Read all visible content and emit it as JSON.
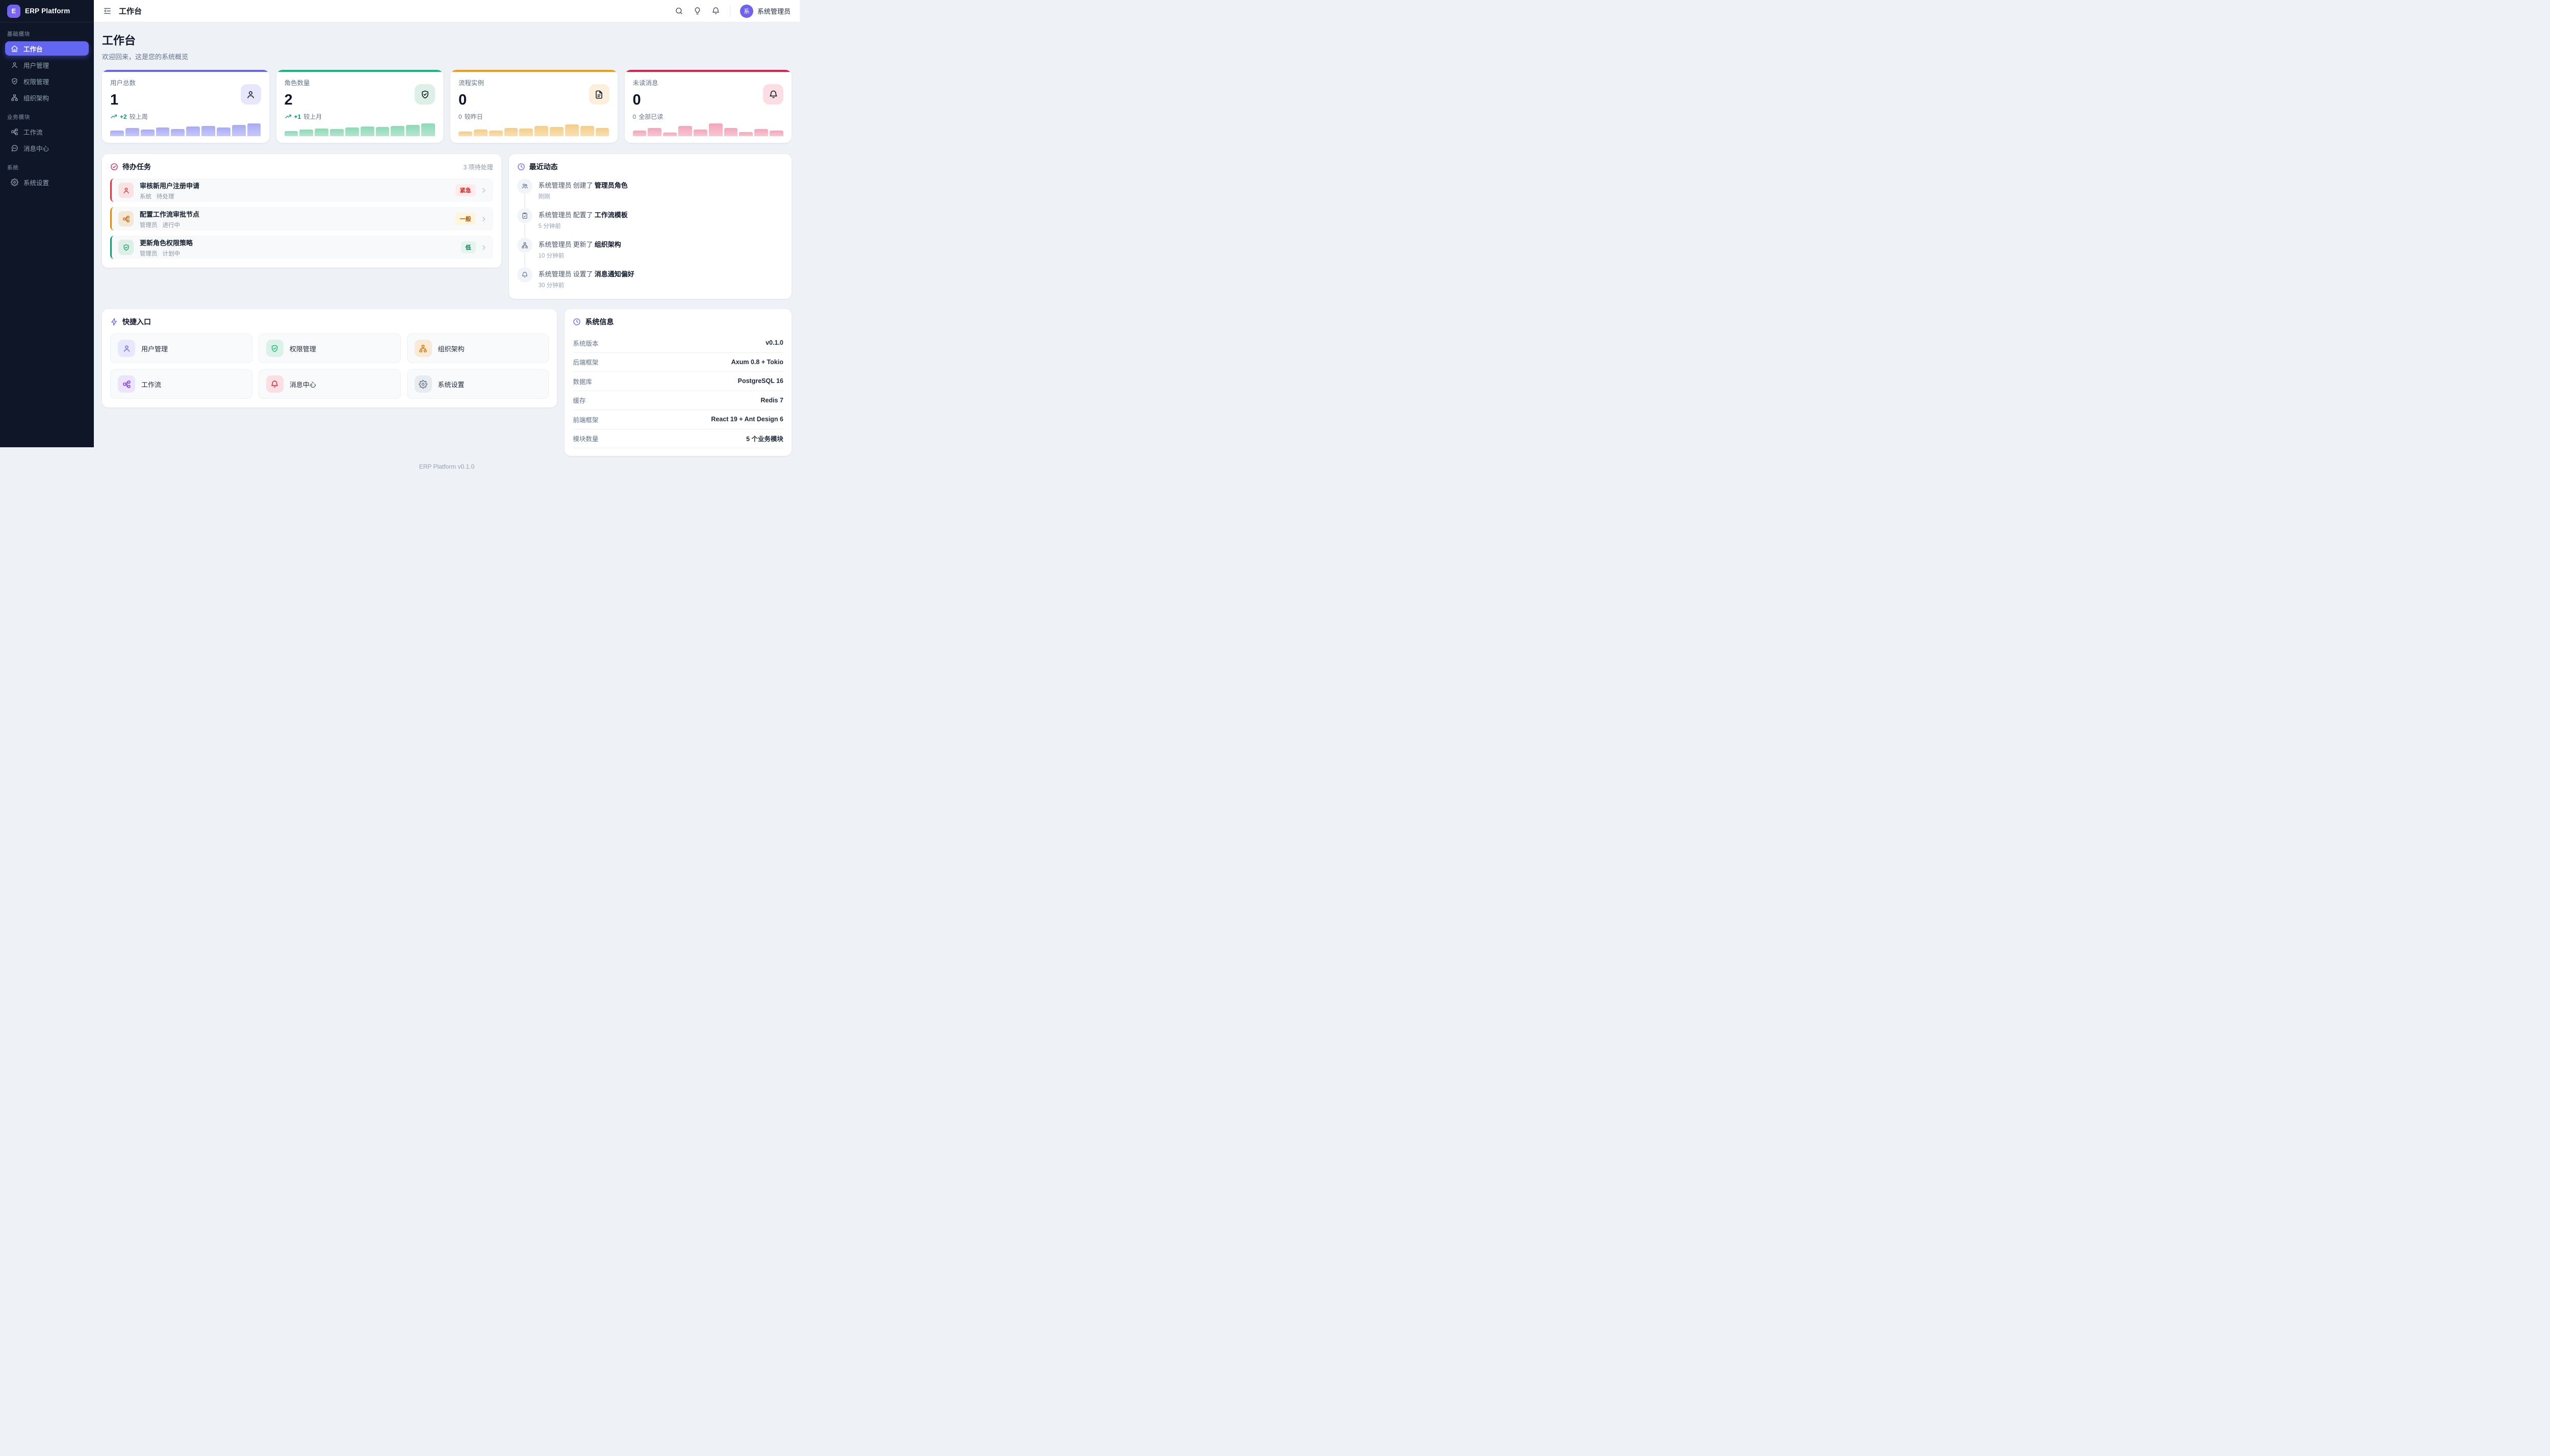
{
  "colors": {
    "primary": "#6366f1",
    "green": "#10b981",
    "orange": "#f59e0b",
    "red": "#e11d48",
    "trend_up": "#059669"
  },
  "sidebar": {
    "logo_letter": "E",
    "brand": "ERP Platform",
    "sections": [
      {
        "label": "基础模块",
        "items": [
          {
            "label": "工作台",
            "icon": "home-icon",
            "active": true
          },
          {
            "label": "用户管理",
            "icon": "user-icon"
          },
          {
            "label": "权限管理",
            "icon": "shield-check-icon"
          },
          {
            "label": "组织架构",
            "icon": "org-icon"
          }
        ]
      },
      {
        "label": "业务模块",
        "items": [
          {
            "label": "工作流",
            "icon": "workflow-icon"
          },
          {
            "label": "消息中心",
            "icon": "message-icon"
          }
        ]
      },
      {
        "label": "系统",
        "items": [
          {
            "label": "系统设置",
            "icon": "gear-icon"
          }
        ]
      }
    ]
  },
  "topbar": {
    "title": "工作台",
    "icons": [
      "menu-fold-icon",
      "search-icon",
      "lightbulb-icon",
      "bell-icon"
    ],
    "user_initial": "系",
    "user_name": "系统管理员"
  },
  "page": {
    "title": "工作台",
    "subtitle": "欢迎回来，这是您的系统概览"
  },
  "stat_cards": [
    {
      "label": "用户总数",
      "value": "1",
      "trend_value": "+2",
      "trend_label": "较上周",
      "trend_type": "up",
      "accent": "#6366f1",
      "icon": "user-icon",
      "icon_bg": "#e7e6fb",
      "bar_color": "#a9abf4",
      "bar_color_light": "#c6c8fa",
      "bars": [
        38,
        52,
        42,
        56,
        46,
        62,
        66,
        56,
        74,
        82
      ]
    },
    {
      "label": "角色数量",
      "value": "2",
      "trend_value": "+1",
      "trend_label": "较上月",
      "trend_type": "up",
      "accent": "#10b981",
      "icon": "shield-check-icon",
      "icon_bg": "#ddf0e7",
      "bar_color": "#8ed9b6",
      "bar_color_light": "#b4e6cf",
      "bars": [
        32,
        42,
        50,
        47,
        57,
        65,
        61,
        67,
        73,
        84
      ]
    },
    {
      "label": "流程实例",
      "value": "0",
      "trend_value": "0",
      "trend_label": "较昨日",
      "trend_type": "flat",
      "accent": "#f59e0b",
      "icon": "file-icon",
      "icon_bg": "#faf0dc",
      "bar_color": "#f4cd8a",
      "bar_color_light": "#f9e0b0",
      "bars": [
        30,
        45,
        37,
        54,
        49,
        68,
        60,
        76,
        66,
        55
      ]
    },
    {
      "label": "未读消息",
      "value": "0",
      "trend_value": "0",
      "trend_label": "全部已读",
      "trend_type": "flat",
      "accent": "#e11d48",
      "icon": "bell-icon",
      "icon_bg": "#fbdde4",
      "bar_color": "#f3a6ba",
      "bar_color_light": "#f8c6d2",
      "bars": [
        36,
        54,
        23,
        66,
        43,
        83,
        54,
        28,
        47,
        37
      ]
    }
  ],
  "todo": {
    "title": "待办任务",
    "count_text": "3 项待处理",
    "items": [
      {
        "title": "审核新用户注册申请",
        "source": "系统",
        "status": "待处理",
        "priority": "紧急",
        "accent": "#e5343f",
        "icon": "user-icon",
        "icon_bg": "#fbe2e2",
        "icon_color": "#dc2626",
        "pill_bg": "#fdeceb",
        "pill_color": "#dc2626"
      },
      {
        "title": "配置工作流审批节点",
        "source": "管理员",
        "status": "进行中",
        "priority": "一般",
        "accent": "#e78a00",
        "icon": "workflow-icon",
        "icon_bg": "#f5e7d5",
        "icon_color": "#c2610c",
        "pill_bg": "#fdf5dc",
        "pill_color": "#b45309"
      },
      {
        "title": "更新角色权限策略",
        "source": "管理员",
        "status": "计划中",
        "priority": "低",
        "accent": "#10a06d",
        "icon": "shield-check-icon",
        "icon_bg": "#ddefe6",
        "icon_color": "#0f9d6e",
        "pill_bg": "#e5f5ed",
        "pill_color": "#047857"
      }
    ]
  },
  "activity": {
    "title": "最近动态",
    "items": [
      {
        "actor": "系统管理员",
        "action": "创建了",
        "object": "管理员角色",
        "time": "刚刚",
        "icon": "users-icon"
      },
      {
        "actor": "系统管理员",
        "action": "配置了",
        "object": "工作流模板",
        "time": "5 分钟前",
        "icon": "clipboard-icon"
      },
      {
        "actor": "系统管理员",
        "action": "更新了",
        "object": "组织架构",
        "time": "10 分钟前",
        "icon": "org-icon"
      },
      {
        "actor": "系统管理员",
        "action": "设置了",
        "object": "消息通知偏好",
        "time": "30 分钟前",
        "icon": "bell-icon"
      }
    ]
  },
  "quick": {
    "title": "快捷入口",
    "items": [
      {
        "label": "用户管理",
        "icon": "user-icon",
        "icon_bg": "#e7e7fd",
        "icon_color": "#6366f1"
      },
      {
        "label": "权限管理",
        "icon": "shield-check-icon",
        "icon_bg": "#dcf2e8",
        "icon_color": "#10b981"
      },
      {
        "label": "组织架构",
        "icon": "org-icon",
        "icon_bg": "#f8ead6",
        "icon_color": "#d97706"
      },
      {
        "label": "工作流",
        "icon": "workflow-icon",
        "icon_bg": "#ece4fb",
        "icon_color": "#7c3aed"
      },
      {
        "label": "消息中心",
        "icon": "bell-icon",
        "icon_bg": "#fbdfe2",
        "icon_color": "#e11d48"
      },
      {
        "label": "系统设置",
        "icon": "gear-icon",
        "icon_bg": "#e8ebef",
        "icon_color": "#64748b"
      }
    ]
  },
  "sysinfo": {
    "title": "系统信息",
    "rows": [
      {
        "label": "系统版本",
        "value": "v0.1.0"
      },
      {
        "label": "后端框架",
        "value": "Axum 0.8 + Tokio"
      },
      {
        "label": "数据库",
        "value": "PostgreSQL 16"
      },
      {
        "label": "缓存",
        "value": "Redis 7"
      },
      {
        "label": "前端框架",
        "value": "React 19 + Ant Design 6"
      },
      {
        "label": "模块数量",
        "value": "5 个业务模块"
      }
    ]
  },
  "footer": {
    "text": "ERP Platform v0.1.0"
  }
}
